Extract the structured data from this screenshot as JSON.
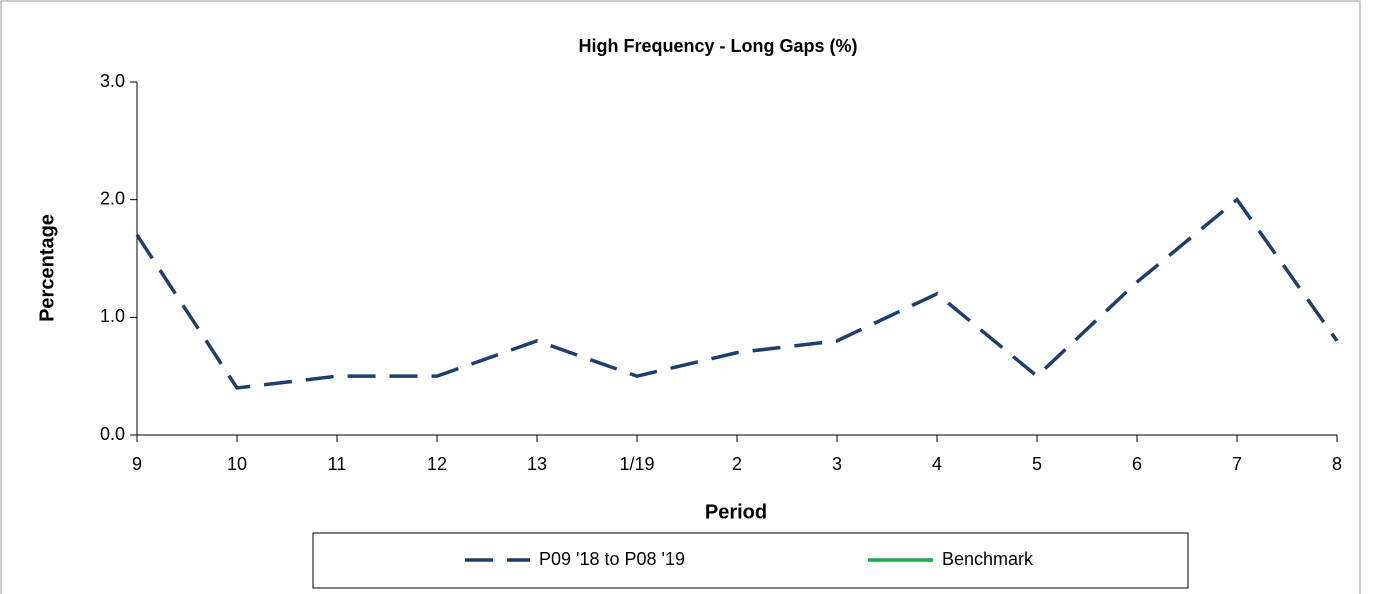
{
  "chart_data": {
    "type": "line",
    "title": "High Frequency - Long Gaps (%)",
    "x_label": "Period",
    "y_label": "Percentage",
    "categories": [
      "9",
      "10",
      "11",
      "12",
      "13",
      "1/19",
      "2",
      "3",
      "4",
      "5",
      "6",
      "7",
      "8"
    ],
    "series": [
      {
        "name": "P09 '18 to P08 '19",
        "color": "#1f3e6e",
        "dashed": true,
        "values": [
          1.7,
          0.4,
          0.5,
          0.5,
          0.8,
          0.5,
          0.7,
          0.8,
          1.2,
          0.5,
          1.3,
          2.0,
          0.8
        ]
      },
      {
        "name": "Benchmark",
        "color": "#1aaa4a",
        "dashed": false,
        "values": [
          null,
          null,
          null,
          null,
          null,
          null,
          null,
          null,
          null,
          null,
          null,
          null,
          null
        ]
      }
    ],
    "ylim": [
      0,
      3
    ],
    "yticks": [
      {
        "value": 0,
        "label": "0.0"
      },
      {
        "value": 1,
        "label": "1.0"
      },
      {
        "value": 2,
        "label": "2.0"
      },
      {
        "value": 3,
        "label": "3.0"
      }
    ],
    "legend": "bottom"
  }
}
